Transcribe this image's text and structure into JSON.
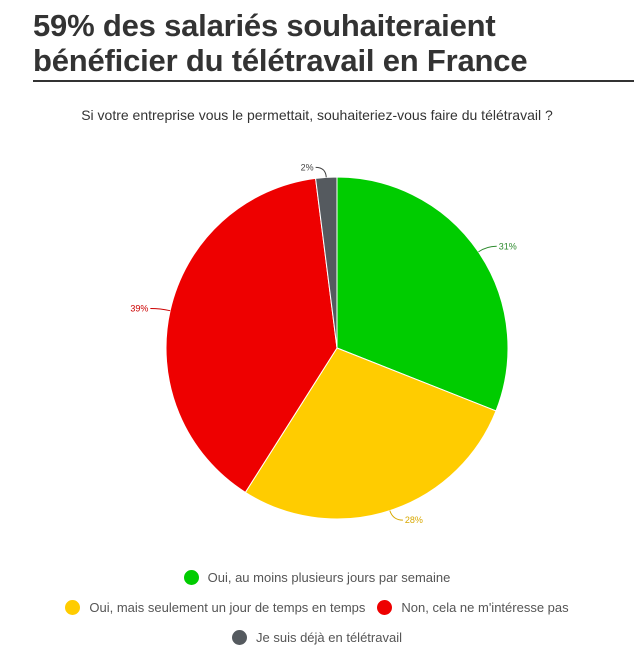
{
  "chart_data": {
    "type": "pie",
    "title_lines": [
      "59% des salariés souhaiteraient",
      "bénéficier du télétravail en France"
    ],
    "subtitle": "Si votre entreprise vous le permettait, souhaiteriez-vous faire du télétravail ?",
    "slices": [
      {
        "name": "Oui, au moins plusieurs jours par semaine",
        "value": 31,
        "label": "31%",
        "color": "#00cc00"
      },
      {
        "name": "Oui, mais seulement un jour de temps en temps",
        "value": 28,
        "label": "28%",
        "color": "#ffcc00"
      },
      {
        "name": "Non, cela ne m'intéresse pas",
        "value": 39,
        "label": "39%",
        "color": "#ee0000"
      },
      {
        "name": "Je suis déjà en télétravail",
        "value": 2,
        "label": "2%",
        "color": "#555a5f"
      }
    ],
    "legend_placement": "bottom"
  }
}
